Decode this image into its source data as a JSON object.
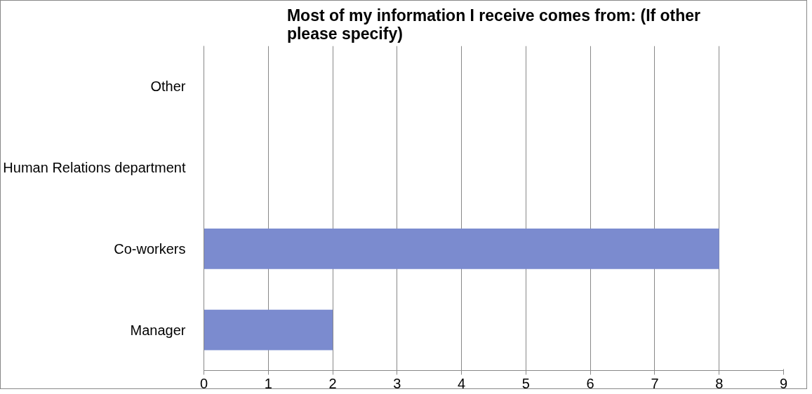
{
  "chart_data": {
    "type": "bar",
    "orientation": "horizontal",
    "title": "Most of my information I receive comes from: (If other please specify)",
    "categories": [
      "Other",
      "Human Relations department",
      "Co-workers",
      "Manager"
    ],
    "values": [
      0,
      0,
      8,
      2
    ],
    "color": "#7b8bcf",
    "xlim": [
      0,
      9
    ],
    "xticks": [
      0,
      1,
      2,
      3,
      4,
      5,
      6,
      7,
      8,
      9
    ],
    "grid": "x"
  }
}
